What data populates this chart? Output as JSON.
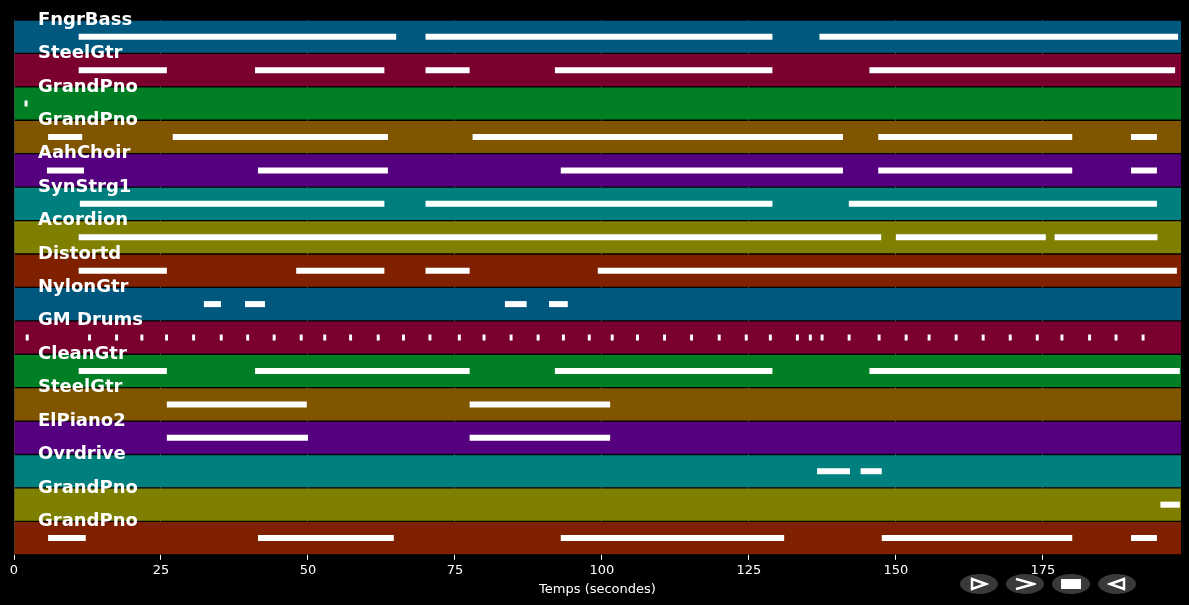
{
  "chart_data": {
    "type": "bar",
    "orientation": "horizontal",
    "xlabel": "Temps (secondes)",
    "xlim": [
      0,
      198.5
    ],
    "xticks": [
      0,
      25,
      50,
      75,
      100,
      125,
      150,
      175
    ],
    "grid": "x",
    "legend": false,
    "categories": [
      "FngrBass",
      "SteelGtr",
      "GrandPno",
      "GrandPno",
      "AahChoir",
      "SynStrg1",
      "Acordion",
      "Distortd",
      "NylonGtr",
      "GM Drums",
      "CleanGtr",
      "SteelGtr",
      "ElPiano2",
      "Ovrdrive",
      "GrandPno",
      "GrandPno"
    ],
    "series": [
      {
        "colors": [
          "#00587f",
          "#7a0030",
          "#007f25",
          "#7f5500",
          "#55007f",
          "#007f7f",
          "#7f7f00",
          "#7f2000",
          "#00587f",
          "#7a0030",
          "#007f25",
          "#7f5500",
          "#55007f",
          "#007f7f",
          "#7f7f00",
          "#7f2000"
        ],
        "base": [
          0,
          0,
          0,
          0,
          0,
          0,
          0,
          0,
          0,
          0,
          0,
          0,
          0,
          0,
          0,
          0
        ],
        "values": [
          198.5,
          198.5,
          198.5,
          198.5,
          198.5,
          198.5,
          198.5,
          198.5,
          198.5,
          198.5,
          198.5,
          198.5,
          198.5,
          198.5,
          198.5,
          198.5
        ]
      },
      {
        "color": "#ffffff",
        "base": [
          11,
          11,
          1.8,
          5.8,
          5.6,
          11.2,
          11,
          11,
          32.3,
          2,
          11,
          26,
          26,
          136.6,
          195,
          5.8
        ],
        "values": [
          54,
          15,
          0.5,
          5.8,
          6.3,
          51.8,
          136.5,
          15,
          2.9,
          0.5,
          15,
          23.8,
          24,
          5.6,
          3.3,
          6.4
        ]
      },
      {
        "color": "#ffffff",
        "base": [
          70,
          41,
          null,
          27,
          41.5,
          70,
          150,
          48,
          39.3,
          12.6,
          41,
          77.5,
          77.5,
          144,
          null,
          41.5
        ],
        "values": [
          59,
          22,
          null,
          36.6,
          22.1,
          59,
          25.5,
          15,
          3.4,
          0.5,
          36.5,
          23.9,
          23.9,
          3.6,
          null,
          23.1
        ]
      },
      {
        "color": "#ffffff",
        "base": [
          137,
          70,
          null,
          78,
          93,
          142,
          177,
          70,
          83.5,
          17.2,
          92,
          null,
          null,
          null,
          null,
          93
        ],
        "values": [
          61,
          7.5,
          null,
          63,
          48,
          52.4,
          17.5,
          7.5,
          3.7,
          0.5,
          37,
          null,
          null,
          null,
          null,
          38
        ]
      },
      {
        "color": "#ffffff",
        "base": [
          null,
          92,
          null,
          147,
          147,
          null,
          null,
          99.3,
          91,
          21.5,
          145.5,
          null,
          null,
          null,
          null,
          147.6
        ],
        "values": [
          null,
          37,
          null,
          33,
          33,
          null,
          null,
          98.5,
          3.2,
          0.5,
          52.8,
          null,
          null,
          null,
          null,
          32.4
        ]
      },
      {
        "color": "#ffffff",
        "base": [
          null,
          145.5,
          null,
          190,
          190,
          null,
          null,
          null,
          null,
          25.7,
          null,
          null,
          null,
          null,
          null,
          190
        ],
        "values": [
          null,
          52,
          null,
          4.4,
          4.4,
          null,
          null,
          null,
          null,
          0.5,
          null,
          null,
          null,
          null,
          null,
          4.4
        ]
      },
      {
        "color": "#ffffff",
        "base": [
          null,
          null,
          null,
          null,
          null,
          null,
          null,
          null,
          null,
          30.3,
          null,
          null,
          null,
          null,
          null,
          null
        ],
        "values": [
          null,
          null,
          null,
          null,
          null,
          null,
          null,
          null,
          null,
          0.5,
          null,
          null,
          null,
          null,
          null,
          null
        ]
      },
      {
        "color": "#ffffff",
        "base": [
          null,
          null,
          null,
          null,
          null,
          null,
          null,
          null,
          null,
          35,
          null,
          null,
          null,
          null,
          null,
          null
        ],
        "values": [
          null,
          null,
          null,
          null,
          null,
          null,
          null,
          null,
          null,
          0.5,
          null,
          null,
          null,
          null,
          null,
          null
        ]
      },
      {
        "color": "#ffffff",
        "base": [
          null,
          null,
          null,
          null,
          null,
          null,
          null,
          null,
          null,
          39.5,
          null,
          null,
          null,
          null,
          null,
          null
        ],
        "values": [
          null,
          null,
          null,
          null,
          null,
          null,
          null,
          null,
          null,
          0.5,
          null,
          null,
          null,
          null,
          null,
          null
        ]
      },
      {
        "color": "#ffffff",
        "base": [
          null,
          null,
          null,
          null,
          null,
          null,
          null,
          null,
          null,
          44,
          null,
          null,
          null,
          null,
          null,
          null
        ],
        "values": [
          null,
          null,
          null,
          null,
          null,
          null,
          null,
          null,
          null,
          0.5,
          null,
          null,
          null,
          null,
          null,
          null
        ]
      },
      {
        "color": "#ffffff",
        "base": [
          null,
          null,
          null,
          null,
          null,
          null,
          null,
          null,
          null,
          48.6,
          null,
          null,
          null,
          null,
          null,
          null
        ],
        "values": [
          null,
          null,
          null,
          null,
          null,
          null,
          null,
          null,
          null,
          0.5,
          null,
          null,
          null,
          null,
          null,
          null
        ]
      },
      {
        "color": "#ffffff",
        "base": [
          null,
          null,
          null,
          null,
          null,
          null,
          null,
          null,
          null,
          52.6,
          null,
          null,
          null,
          null,
          null,
          null
        ],
        "values": [
          null,
          null,
          null,
          null,
          null,
          null,
          null,
          null,
          null,
          0.5,
          null,
          null,
          null,
          null,
          null,
          null
        ]
      },
      {
        "color": "#ffffff",
        "base": [
          null,
          null,
          null,
          null,
          null,
          null,
          null,
          null,
          null,
          57,
          null,
          null,
          null,
          null,
          null,
          null
        ],
        "values": [
          null,
          null,
          null,
          null,
          null,
          null,
          null,
          null,
          null,
          0.5,
          null,
          null,
          null,
          null,
          null,
          null
        ]
      },
      {
        "color": "#ffffff",
        "base": [
          null,
          null,
          null,
          null,
          null,
          null,
          null,
          null,
          null,
          61.7,
          null,
          null,
          null,
          null,
          null,
          null
        ],
        "values": [
          null,
          null,
          null,
          null,
          null,
          null,
          null,
          null,
          null,
          0.5,
          null,
          null,
          null,
          null,
          null,
          null
        ]
      },
      {
        "color": "#ffffff",
        "base": [
          null,
          null,
          null,
          null,
          null,
          null,
          null,
          null,
          null,
          66,
          null,
          null,
          null,
          null,
          null,
          null
        ],
        "values": [
          null,
          null,
          null,
          null,
          null,
          null,
          null,
          null,
          null,
          0.5,
          null,
          null,
          null,
          null,
          null,
          null
        ]
      },
      {
        "color": "#ffffff",
        "base": [
          null,
          null,
          null,
          null,
          null,
          null,
          null,
          null,
          null,
          70.5,
          null,
          null,
          null,
          null,
          null,
          null
        ],
        "values": [
          null,
          null,
          null,
          null,
          null,
          null,
          null,
          null,
          null,
          0.5,
          null,
          null,
          null,
          null,
          null,
          null
        ]
      },
      {
        "color": "#ffffff",
        "base": [
          null,
          null,
          null,
          null,
          null,
          null,
          null,
          null,
          null,
          75.5,
          null,
          null,
          null,
          null,
          null,
          null
        ],
        "values": [
          null,
          null,
          null,
          null,
          null,
          null,
          null,
          null,
          null,
          0.5,
          null,
          null,
          null,
          null,
          null,
          null
        ]
      },
      {
        "color": "#ffffff",
        "base": [
          null,
          null,
          null,
          null,
          null,
          null,
          null,
          null,
          null,
          79.7,
          null,
          null,
          null,
          null,
          null,
          null
        ],
        "values": [
          null,
          null,
          null,
          null,
          null,
          null,
          null,
          null,
          null,
          0.5,
          null,
          null,
          null,
          null,
          null,
          null
        ]
      },
      {
        "color": "#ffffff",
        "base": [
          null,
          null,
          null,
          null,
          null,
          null,
          null,
          null,
          null,
          84.3,
          null,
          null,
          null,
          null,
          null,
          null
        ],
        "values": [
          null,
          null,
          null,
          null,
          null,
          null,
          null,
          null,
          null,
          0.5,
          null,
          null,
          null,
          null,
          null,
          null
        ]
      },
      {
        "color": "#ffffff",
        "base": [
          null,
          null,
          null,
          null,
          null,
          null,
          null,
          null,
          null,
          88.9,
          null,
          null,
          null,
          null,
          null,
          null
        ],
        "values": [
          null,
          null,
          null,
          null,
          null,
          null,
          null,
          null,
          null,
          0.5,
          null,
          null,
          null,
          null,
          null,
          null
        ]
      },
      {
        "color": "#ffffff",
        "base": [
          null,
          null,
          null,
          null,
          null,
          null,
          null,
          null,
          null,
          93.2,
          null,
          null,
          null,
          null,
          null,
          null
        ],
        "values": [
          null,
          null,
          null,
          null,
          null,
          null,
          null,
          null,
          null,
          0.5,
          null,
          null,
          null,
          null,
          null,
          null
        ]
      },
      {
        "color": "#ffffff",
        "base": [
          null,
          null,
          null,
          null,
          null,
          null,
          null,
          null,
          null,
          97.6,
          null,
          null,
          null,
          null,
          null,
          null
        ],
        "values": [
          null,
          null,
          null,
          null,
          null,
          null,
          null,
          null,
          null,
          0.5,
          null,
          null,
          null,
          null,
          null,
          null
        ]
      },
      {
        "color": "#ffffff",
        "base": [
          null,
          null,
          null,
          null,
          null,
          null,
          null,
          null,
          null,
          101.5,
          null,
          null,
          null,
          null,
          null,
          null
        ],
        "values": [
          null,
          null,
          null,
          null,
          null,
          null,
          null,
          null,
          null,
          0.5,
          null,
          null,
          null,
          null,
          null,
          null
        ]
      },
      {
        "color": "#ffffff",
        "base": [
          null,
          null,
          null,
          null,
          null,
          null,
          null,
          null,
          null,
          105.8,
          null,
          null,
          null,
          null,
          null,
          null
        ],
        "values": [
          null,
          null,
          null,
          null,
          null,
          null,
          null,
          null,
          null,
          0.5,
          null,
          null,
          null,
          null,
          null,
          null
        ]
      },
      {
        "color": "#ffffff",
        "base": [
          null,
          null,
          null,
          null,
          null,
          null,
          null,
          null,
          null,
          110.4,
          null,
          null,
          null,
          null,
          null,
          null
        ],
        "values": [
          null,
          null,
          null,
          null,
          null,
          null,
          null,
          null,
          null,
          0.5,
          null,
          null,
          null,
          null,
          null,
          null
        ]
      },
      {
        "color": "#ffffff",
        "base": [
          null,
          null,
          null,
          null,
          null,
          null,
          null,
          null,
          null,
          115,
          null,
          null,
          null,
          null,
          null,
          null
        ],
        "values": [
          null,
          null,
          null,
          null,
          null,
          null,
          null,
          null,
          null,
          0.5,
          null,
          null,
          null,
          null,
          null,
          null
        ]
      },
      {
        "color": "#ffffff",
        "base": [
          null,
          null,
          null,
          null,
          null,
          null,
          null,
          null,
          null,
          119.7,
          null,
          null,
          null,
          null,
          null,
          null
        ],
        "values": [
          null,
          null,
          null,
          null,
          null,
          null,
          null,
          null,
          null,
          0.5,
          null,
          null,
          null,
          null,
          null,
          null
        ]
      },
      {
        "color": "#ffffff",
        "base": [
          null,
          null,
          null,
          null,
          null,
          null,
          null,
          null,
          null,
          124.3,
          null,
          null,
          null,
          null,
          null,
          null
        ],
        "values": [
          null,
          null,
          null,
          null,
          null,
          null,
          null,
          null,
          null,
          0.5,
          null,
          null,
          null,
          null,
          null,
          null
        ]
      },
      {
        "color": "#ffffff",
        "base": [
          null,
          null,
          null,
          null,
          null,
          null,
          null,
          null,
          null,
          128.4,
          null,
          null,
          null,
          null,
          null,
          null
        ],
        "values": [
          null,
          null,
          null,
          null,
          null,
          null,
          null,
          null,
          null,
          0.5,
          null,
          null,
          null,
          null,
          null,
          null
        ]
      },
      {
        "color": "#ffffff",
        "base": [
          null,
          null,
          null,
          null,
          null,
          null,
          null,
          null,
          null,
          133,
          null,
          null,
          null,
          null,
          null,
          null
        ],
        "values": [
          null,
          null,
          null,
          null,
          null,
          null,
          null,
          null,
          null,
          0.5,
          null,
          null,
          null,
          null,
          null,
          null
        ]
      },
      {
        "color": "#ffffff",
        "base": [
          null,
          null,
          null,
          null,
          null,
          null,
          null,
          null,
          null,
          135.2,
          null,
          null,
          null,
          null,
          null,
          null
        ],
        "values": [
          null,
          null,
          null,
          null,
          null,
          null,
          null,
          null,
          null,
          0.5,
          null,
          null,
          null,
          null,
          null,
          null
        ]
      },
      {
        "color": "#ffffff",
        "base": [
          null,
          null,
          null,
          null,
          null,
          null,
          null,
          null,
          null,
          137.2,
          null,
          null,
          null,
          null,
          null,
          null
        ],
        "values": [
          null,
          null,
          null,
          null,
          null,
          null,
          null,
          null,
          null,
          0.5,
          null,
          null,
          null,
          null,
          null,
          null
        ]
      },
      {
        "color": "#ffffff",
        "base": [
          null,
          null,
          null,
          null,
          null,
          null,
          null,
          null,
          null,
          141.8,
          null,
          null,
          null,
          null,
          null,
          null
        ],
        "values": [
          null,
          null,
          null,
          null,
          null,
          null,
          null,
          null,
          null,
          0.5,
          null,
          null,
          null,
          null,
          null,
          null
        ]
      },
      {
        "color": "#ffffff",
        "base": [
          null,
          null,
          null,
          null,
          null,
          null,
          null,
          null,
          null,
          146.9,
          null,
          null,
          null,
          null,
          null,
          null
        ],
        "values": [
          null,
          null,
          null,
          null,
          null,
          null,
          null,
          null,
          null,
          0.5,
          null,
          null,
          null,
          null,
          null,
          null
        ]
      },
      {
        "color": "#ffffff",
        "base": [
          null,
          null,
          null,
          null,
          null,
          null,
          null,
          null,
          null,
          151.5,
          null,
          null,
          null,
          null,
          null,
          null
        ],
        "values": [
          null,
          null,
          null,
          null,
          null,
          null,
          null,
          null,
          null,
          0.5,
          null,
          null,
          null,
          null,
          null,
          null
        ]
      },
      {
        "color": "#ffffff",
        "base": [
          null,
          null,
          null,
          null,
          null,
          null,
          null,
          null,
          null,
          155.4,
          null,
          null,
          null,
          null,
          null,
          null
        ],
        "values": [
          null,
          null,
          null,
          null,
          null,
          null,
          null,
          null,
          null,
          0.5,
          null,
          null,
          null,
          null,
          null,
          null
        ]
      },
      {
        "color": "#ffffff",
        "base": [
          null,
          null,
          null,
          null,
          null,
          null,
          null,
          null,
          null,
          160,
          null,
          null,
          null,
          null,
          null,
          null
        ],
        "values": [
          null,
          null,
          null,
          null,
          null,
          null,
          null,
          null,
          null,
          0.5,
          null,
          null,
          null,
          null,
          null,
          null
        ]
      },
      {
        "color": "#ffffff",
        "base": [
          null,
          null,
          null,
          null,
          null,
          null,
          null,
          null,
          null,
          164.6,
          null,
          null,
          null,
          null,
          null,
          null
        ],
        "values": [
          null,
          null,
          null,
          null,
          null,
          null,
          null,
          null,
          null,
          0.5,
          null,
          null,
          null,
          null,
          null,
          null
        ]
      },
      {
        "color": "#ffffff",
        "base": [
          null,
          null,
          null,
          null,
          null,
          null,
          null,
          null,
          null,
          169.2,
          null,
          null,
          null,
          null,
          null,
          null
        ],
        "values": [
          null,
          null,
          null,
          null,
          null,
          null,
          null,
          null,
          null,
          0.5,
          null,
          null,
          null,
          null,
          null,
          null
        ]
      },
      {
        "color": "#ffffff",
        "base": [
          null,
          null,
          null,
          null,
          null,
          null,
          null,
          null,
          null,
          173.8,
          null,
          null,
          null,
          null,
          null,
          null
        ],
        "values": [
          null,
          null,
          null,
          null,
          null,
          null,
          null,
          null,
          null,
          0.5,
          null,
          null,
          null,
          null,
          null,
          null
        ]
      },
      {
        "color": "#ffffff",
        "base": [
          null,
          null,
          null,
          null,
          null,
          null,
          null,
          null,
          null,
          178,
          null,
          null,
          null,
          null,
          null,
          null
        ],
        "values": [
          null,
          null,
          null,
          null,
          null,
          null,
          null,
          null,
          null,
          0.5,
          null,
          null,
          null,
          null,
          null,
          null
        ]
      },
      {
        "color": "#ffffff",
        "base": [
          null,
          null,
          null,
          null,
          null,
          null,
          null,
          null,
          null,
          182.7,
          null,
          null,
          null,
          null,
          null,
          null
        ],
        "values": [
          null,
          null,
          null,
          null,
          null,
          null,
          null,
          null,
          null,
          0.5,
          null,
          null,
          null,
          null,
          null,
          null
        ]
      },
      {
        "color": "#ffffff",
        "base": [
          null,
          null,
          null,
          null,
          null,
          null,
          null,
          null,
          null,
          187.2,
          null,
          null,
          null,
          null,
          null,
          null
        ],
        "values": [
          null,
          null,
          null,
          null,
          null,
          null,
          null,
          null,
          null,
          0.5,
          null,
          null,
          null,
          null,
          null,
          null
        ]
      },
      {
        "color": "#ffffff",
        "base": [
          null,
          null,
          null,
          null,
          null,
          null,
          null,
          null,
          null,
          191.8,
          null,
          null,
          null,
          null,
          null,
          null
        ],
        "values": [
          null,
          null,
          null,
          null,
          null,
          null,
          null,
          null,
          null,
          0.5,
          null,
          null,
          null,
          null,
          null,
          null
        ]
      }
    ]
  }
}
